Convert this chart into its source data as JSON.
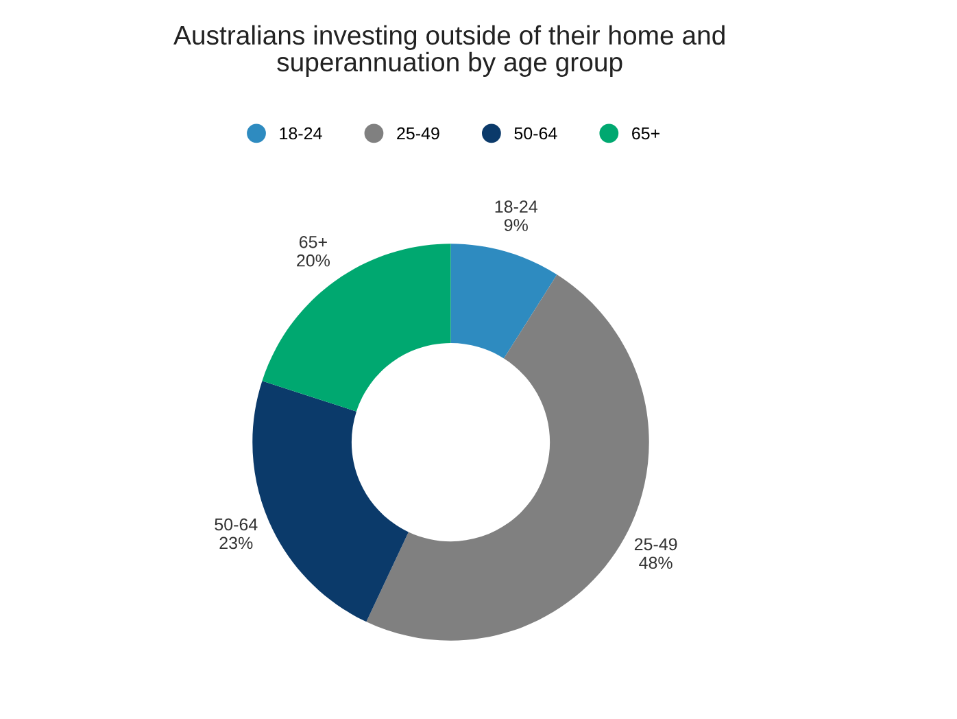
{
  "chart_data": {
    "type": "donut",
    "title": "Australians investing outside of their home and superannuation by age group",
    "categories": [
      "18-24",
      "25-49",
      "50-64",
      "65+"
    ],
    "values": [
      9,
      48,
      23,
      20
    ],
    "colors": [
      "#2e8bc0",
      "#808080",
      "#0b3a6a",
      "#00a870"
    ],
    "value_labels": [
      "18-24\n9%",
      "25-49\n48%",
      "50-64\n23%",
      "65+\n20%"
    ],
    "legend": "top"
  }
}
